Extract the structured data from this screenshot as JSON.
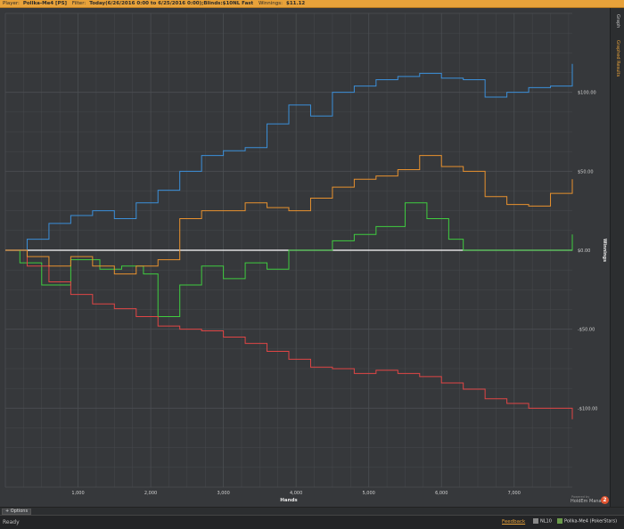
{
  "header": {
    "player_label": "Player:",
    "player_value": "Pollka-Me4 [PS]",
    "filter_label": "Filter:",
    "filter_value": "Today(6/26/2016 0:00 to 6/25/2016 0:00);Blinds:$10NL Fast",
    "winnings_label": "Winnings:",
    "winnings_value": "$11.12"
  },
  "sidebar": {
    "tab1": "Graph",
    "tab2": "Graphed Results"
  },
  "options_label": "Options",
  "status": {
    "text": "Ready",
    "feedback": "Feedback",
    "hud": "NL10",
    "player": "Pollka-Me4 (PokerStars)"
  },
  "brand": {
    "top": "Powered by",
    "name": "HoldEm Manager",
    "logo": "2"
  },
  "chart_data": {
    "type": "line",
    "xlabel": "Hands",
    "ylabel": "Winnings",
    "xlim": [
      0,
      7800
    ],
    "ylim": [
      -150,
      150
    ],
    "x_ticks": [
      "1,000",
      "2,000",
      "3,000",
      "4,000",
      "5,000",
      "6,000",
      "7,000"
    ],
    "y_ticks": [
      "$100.00",
      "$50.00",
      "$0.00",
      "-$50.00",
      "-$100.00"
    ],
    "legend_placement": "bottom",
    "colors": {
      "net_won": "#3fcc3f",
      "non_showdown": "#e04545",
      "showdown": "#3b8fd9",
      "all_in_ev": "#e8912e",
      "zero_line": "#ffffff",
      "grid": "#4b4e52"
    },
    "series": [
      {
        "name": "Net Won",
        "x": [
          0,
          200,
          500,
          900,
          1300,
          1600,
          1900,
          2100,
          2400,
          2700,
          3000,
          3300,
          3600,
          3900,
          4200,
          4500,
          4800,
          5100,
          5500,
          5800,
          6100,
          6300,
          6600,
          6900,
          7200,
          7500,
          7800
        ],
        "values": [
          0,
          -8,
          -22,
          -6,
          -12,
          -10,
          -15,
          -42,
          -22,
          -10,
          -18,
          -8,
          -12,
          0,
          0,
          6,
          10,
          15,
          30,
          20,
          7,
          0,
          0,
          0,
          0,
          0,
          10
        ]
      },
      {
        "name": "Non Showdown",
        "x": [
          0,
          300,
          600,
          900,
          1200,
          1500,
          1800,
          2100,
          2400,
          2700,
          3000,
          3300,
          3600,
          3900,
          4200,
          4500,
          4800,
          5100,
          5400,
          5700,
          6000,
          6300,
          6600,
          6900,
          7200,
          7500,
          7800
        ],
        "values": [
          0,
          -10,
          -20,
          -28,
          -34,
          -37,
          -42,
          -48,
          -50,
          -51,
          -55,
          -59,
          -64,
          -69,
          -74,
          -75,
          -78,
          -76,
          -78,
          -80,
          -84,
          -88,
          -94,
          -97,
          -100,
          -100,
          -107
        ]
      },
      {
        "name": "Showdown",
        "x": [
          0,
          300,
          600,
          900,
          1200,
          1500,
          1800,
          2100,
          2400,
          2700,
          3000,
          3300,
          3600,
          3900,
          4200,
          4500,
          4800,
          5100,
          5400,
          5700,
          6000,
          6300,
          6600,
          6900,
          7200,
          7500,
          7800
        ],
        "values": [
          0,
          7,
          17,
          22,
          25,
          20,
          30,
          38,
          50,
          60,
          63,
          65,
          80,
          92,
          85,
          100,
          104,
          108,
          110,
          112,
          109,
          108,
          97,
          100,
          103,
          104,
          118
        ]
      },
      {
        "name": "All-In EV",
        "x": [
          0,
          300,
          600,
          900,
          1200,
          1500,
          1800,
          2100,
          2400,
          2700,
          3000,
          3300,
          3600,
          3900,
          4200,
          4500,
          4800,
          5100,
          5400,
          5700,
          6000,
          6300,
          6600,
          6900,
          7200,
          7500,
          7800
        ],
        "values": [
          0,
          -4,
          -10,
          -4,
          -10,
          -15,
          -10,
          -6,
          20,
          25,
          25,
          30,
          27,
          25,
          33,
          40,
          45,
          47,
          51,
          60,
          53,
          50,
          34,
          29,
          28,
          36,
          45
        ]
      }
    ]
  }
}
